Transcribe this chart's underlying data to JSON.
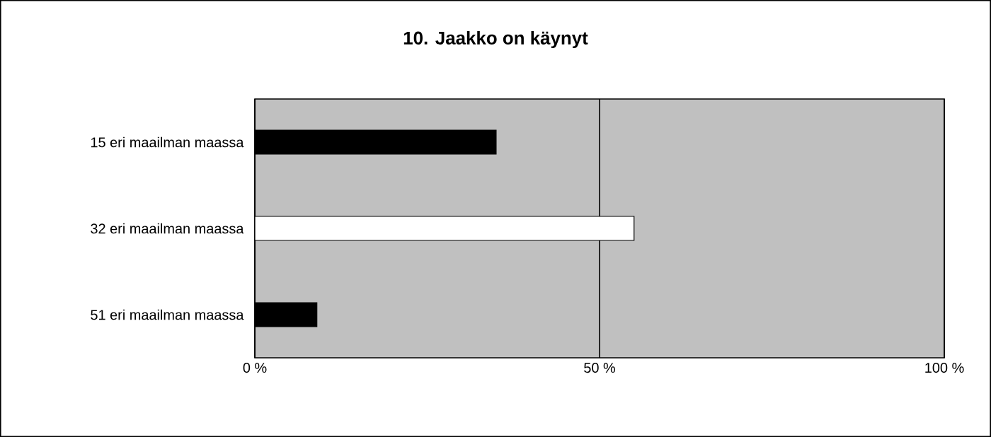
{
  "chart_data": {
    "type": "bar",
    "orientation": "horizontal",
    "title": "10. Jaakko on käynyt",
    "categories": [
      "15 eri maailman maassa",
      "32 eri maailman maassa",
      "51 eri maailman maassa"
    ],
    "values": [
      35,
      55,
      9
    ],
    "colors": [
      "#000000",
      "#ffffff",
      "#000000"
    ],
    "xlim": [
      0,
      100
    ],
    "xticks": [
      {
        "value": 0,
        "label": "0 %"
      },
      {
        "value": 50,
        "label": "50 %"
      },
      {
        "value": 100,
        "label": "100 %"
      }
    ],
    "grid": "x"
  }
}
